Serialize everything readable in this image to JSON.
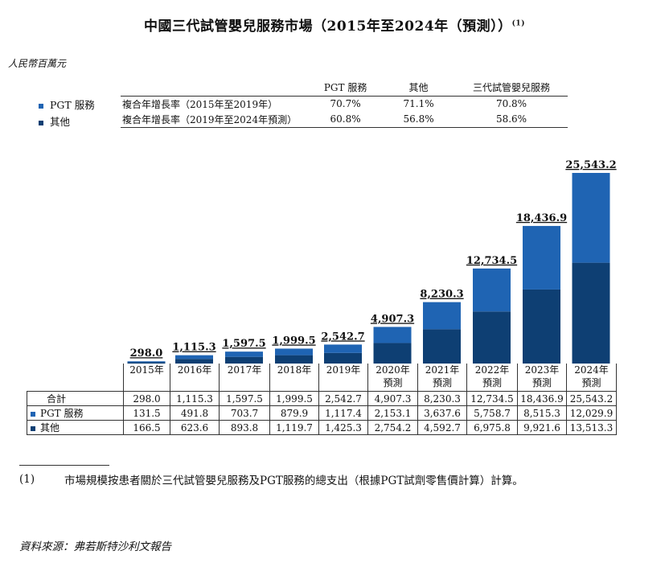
{
  "title": "中國三代試管嬰兒服務市場（2015年至2024年（預測））",
  "title_note": "(1)",
  "unit": "人民幣百萬元",
  "cagr_table": {
    "headers": [
      "",
      "PGT 服務",
      "其他",
      "三代試管嬰兒服務"
    ],
    "rows": [
      {
        "label": "複合年增長率（2015年至2019年）",
        "values": [
          "70.7%",
          "71.1%",
          "70.8%"
        ]
      },
      {
        "label": "複合年增長率（2019年至2024年預測）",
        "values": [
          "60.8%",
          "56.8%",
          "58.6%"
        ]
      }
    ]
  },
  "legend": [
    {
      "name": "PGT 服務",
      "color": "#1f64b3"
    },
    {
      "name": "其他",
      "color": "#0e3f73"
    }
  ],
  "colors": {
    "pgt": "#1f64b3",
    "other": "#0e3f73"
  },
  "chart_data": {
    "type": "bar",
    "stacked": true,
    "categories": [
      "2015年",
      "2016年",
      "2017年",
      "2018年",
      "2019年",
      "2020年",
      "2021年",
      "2022年",
      "2023年",
      "2024年"
    ],
    "category_subtitles": [
      "",
      "",
      "",
      "",
      "",
      "預測",
      "預測",
      "預測",
      "預測",
      "預測"
    ],
    "series": [
      {
        "name": "其他",
        "values": [
          166.5,
          623.6,
          893.8,
          1119.7,
          1425.3,
          2754.2,
          4592.7,
          6975.8,
          9921.6,
          13513.3
        ]
      },
      {
        "name": "PGT 服務",
        "values": [
          131.5,
          491.8,
          703.7,
          879.9,
          1117.4,
          2153.1,
          3637.6,
          5758.7,
          8515.3,
          12029.9
        ]
      }
    ],
    "totals": [
      298.0,
      1115.3,
      1597.5,
      1999.5,
      2542.7,
      4907.3,
      8230.3,
      12734.5,
      18436.9,
      25543.2
    ],
    "total_labels": [
      "298.0",
      "1,115.3",
      "1,597.5",
      "1,999.5",
      "2,542.7",
      "4,907.3",
      "8,230.3",
      "12,734.5",
      "18,436.9",
      "25,543.2"
    ],
    "ylim": [
      0,
      25543.2
    ],
    "grid": false,
    "legend_position": "top-left"
  },
  "data_table": {
    "rows": [
      {
        "label": "合計",
        "swatch": "",
        "values": [
          "298.0",
          "1,115.3",
          "1,597.5",
          "1,999.5",
          "2,542.7",
          "4,907.3",
          "8,230.3",
          "12,734.5",
          "18,436.9",
          "25,543.2"
        ]
      },
      {
        "label": "PGT 服務",
        "swatch": "#1f64b3",
        "values": [
          "131.5",
          "491.8",
          "703.7",
          "879.9",
          "1,117.4",
          "2,153.1",
          "3,637.6",
          "5,758.7",
          "8,515.3",
          "12,029.9"
        ]
      },
      {
        "label": "其他",
        "swatch": "#0e3f73",
        "values": [
          "166.5",
          "623.6",
          "893.8",
          "1,119.7",
          "1,425.3",
          "2,754.2",
          "4,592.7",
          "6,975.8",
          "9,921.6",
          "13,513.3"
        ]
      }
    ]
  },
  "footnote": {
    "number": "(1)",
    "text": "市場規模按患者關於三代試管嬰兒服務及PGT服務的總支出（根據PGT試劑零售價計算）計算。"
  },
  "source": "資料來源：弗若斯特沙利文報告"
}
